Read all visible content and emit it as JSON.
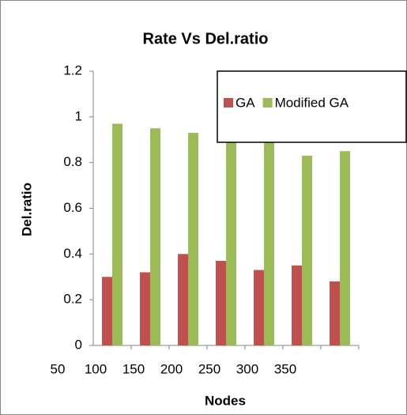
{
  "chart_data": {
    "type": "bar",
    "title": "Rate Vs Del.ratio",
    "xlabel": "Nodes",
    "ylabel": "Del.ratio",
    "categories": [
      "50",
      "100",
      "150",
      "200",
      "250",
      "300",
      "350"
    ],
    "series": [
      {
        "name": "GA",
        "color": "#c0504d",
        "values": [
          0.3,
          0.32,
          0.4,
          0.37,
          0.33,
          0.35,
          0.28
        ]
      },
      {
        "name": "Modified GA",
        "color": "#9bbb59",
        "values": [
          0.97,
          0.95,
          0.93,
          0.94,
          0.92,
          0.83,
          0.85
        ]
      }
    ],
    "ylim": [
      0,
      1.2
    ],
    "yticks": [
      0,
      0.2,
      0.4,
      0.6,
      0.8,
      1,
      1.2
    ],
    "legend": "top-right"
  }
}
